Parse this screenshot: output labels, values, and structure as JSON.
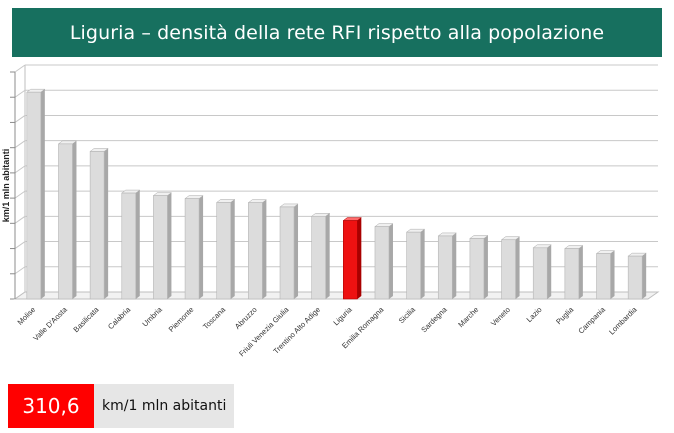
{
  "title": "Liguria – densità della rete RFI rispetto alla popolazione",
  "chart_data": {
    "type": "bar",
    "ylabel": "km/1 mln abitanti",
    "ylim": [
      0,
      900
    ],
    "grid": true,
    "highlight_category": "Liguria",
    "colors": {
      "bar": "#d9d9d9",
      "highlight": "#ff0000",
      "grid": "#c8c8c8"
    },
    "categories": [
      "Molise",
      "Valle D'Aosta",
      "Basilicata",
      "Calabria",
      "Umbria",
      "Piemonte",
      "Toscana",
      "Abruzzo",
      "Friuli Venezia Giulia",
      "Trentino Alto Adige",
      "Liguria",
      "Emilia Romagna",
      "Sicilia",
      "Sardegna",
      "Marche",
      "Veneto",
      "Lazio",
      "Puglia",
      "Campania",
      "Lombardia"
    ],
    "values": [
      820,
      615,
      585,
      420,
      410,
      398,
      383,
      382,
      365,
      328,
      311,
      287,
      265,
      250,
      240,
      235,
      203,
      200,
      180,
      170
    ]
  },
  "stat": {
    "value": "310,6",
    "unit": "km/1 mln abitanti"
  }
}
